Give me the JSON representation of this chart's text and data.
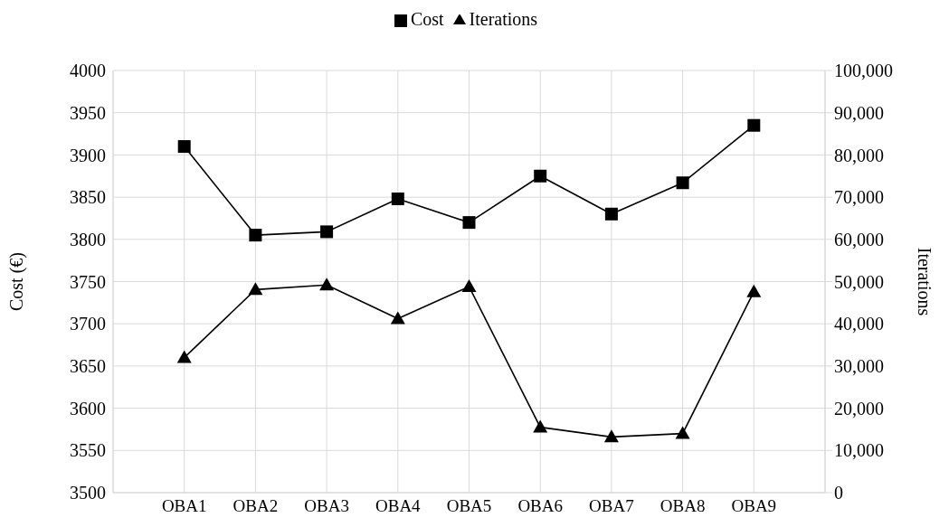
{
  "chart_data": {
    "type": "line",
    "categories": [
      null,
      "OBA1",
      "OBA2",
      "OBA3",
      "OBA4",
      "OBA5",
      "OBA6",
      "OBA7",
      "OBA8",
      "OBA9",
      null
    ],
    "series": [
      {
        "name": "Cost",
        "color": "#000000",
        "marker": "square",
        "values": [
          null,
          3910,
          3805,
          3809,
          3848,
          3820,
          3875,
          3830,
          3867,
          3935,
          null
        ]
      },
      {
        "name": "Iterations",
        "color": "#000000",
        "marker": "triangle",
        "axis": "y2",
        "values": [
          null,
          32000,
          48100,
          49200,
          41200,
          48800,
          15500,
          13200,
          14000,
          47600,
          null
        ]
      }
    ],
    "ylabel": "Cost (€)",
    "y2label": "Iterations",
    "ylim": [
      3500,
      4000
    ],
    "yticks": [
      3500,
      3550,
      3600,
      3650,
      3700,
      3750,
      3800,
      3850,
      3900,
      3950,
      4000
    ],
    "y2lim": [
      0,
      100000
    ],
    "y2ticks": [
      0,
      {
        "value": 10000,
        "label": "10,000"
      },
      {
        "value": 20000,
        "label": "20,000"
      },
      {
        "value": 30000,
        "label": "30,000"
      },
      {
        "value": 40000,
        "label": "40,000"
      },
      {
        "value": 50000,
        "label": "50,000"
      },
      {
        "value": 60000,
        "label": "60,000"
      },
      {
        "value": 70000,
        "label": "70,000"
      },
      {
        "value": 80000,
        "label": "80,000"
      },
      {
        "value": 90000,
        "label": "90,000"
      },
      {
        "value": 100000,
        "label": "100,000"
      }
    ],
    "grid": true,
    "legend": "top",
    "line_style": "solid"
  }
}
